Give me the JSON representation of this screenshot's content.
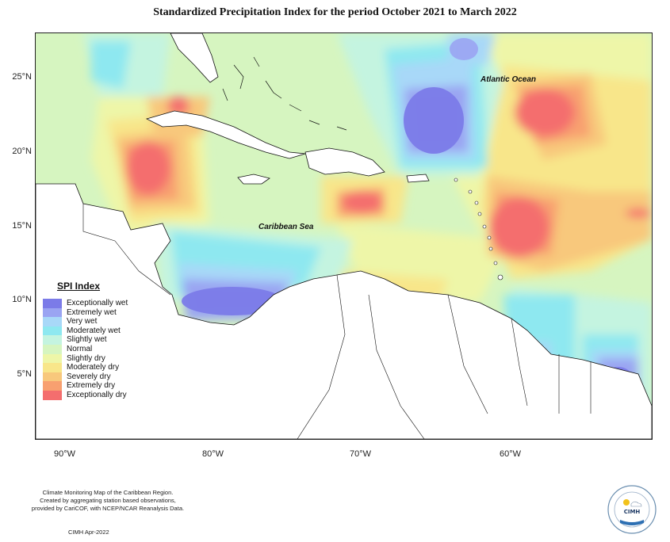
{
  "title": "Standardized Precipitation Index for the period October 2021 to March 2022",
  "map": {
    "lat_labels": [
      "25°N",
      "20°N",
      "15°N",
      "10°N",
      "5°N"
    ],
    "lon_labels": [
      "90°W",
      "80°W",
      "70°W",
      "60°W"
    ],
    "labels": {
      "atlantic": "Atlantic Ocean",
      "caribbean": "Caribbean Sea"
    }
  },
  "legend": {
    "title": "SPI Index",
    "items": [
      {
        "label": "Exceptionally wet",
        "color": "#7b7be8"
      },
      {
        "label": "Extremely wet",
        "color": "#9aa4f2"
      },
      {
        "label": "Very wet",
        "color": "#a8d8f8"
      },
      {
        "label": "Moderately wet",
        "color": "#8ee8f0"
      },
      {
        "label": "Slightly wet",
        "color": "#c4f4e0"
      },
      {
        "label": "Normal",
        "color": "#d6f5c0"
      },
      {
        "label": "Slightly dry",
        "color": "#eef6a8"
      },
      {
        "label": "Moderately dry",
        "color": "#f8e68a"
      },
      {
        "label": "Severely dry",
        "color": "#f8c87c"
      },
      {
        "label": "Extremely dry",
        "color": "#f8a070"
      },
      {
        "label": "Exceptionally dry",
        "color": "#f46e6e"
      }
    ]
  },
  "footer": {
    "line1": "Climate Monitoring Map of the Caribbean Region.",
    "line2": "Created by aggregating station based observations,",
    "line3": "provided by CariCOF, with NCEP/NCAR Reanalysis Data.",
    "date": "CIMH Apr-2022"
  },
  "logo": {
    "text": "CIMH"
  }
}
